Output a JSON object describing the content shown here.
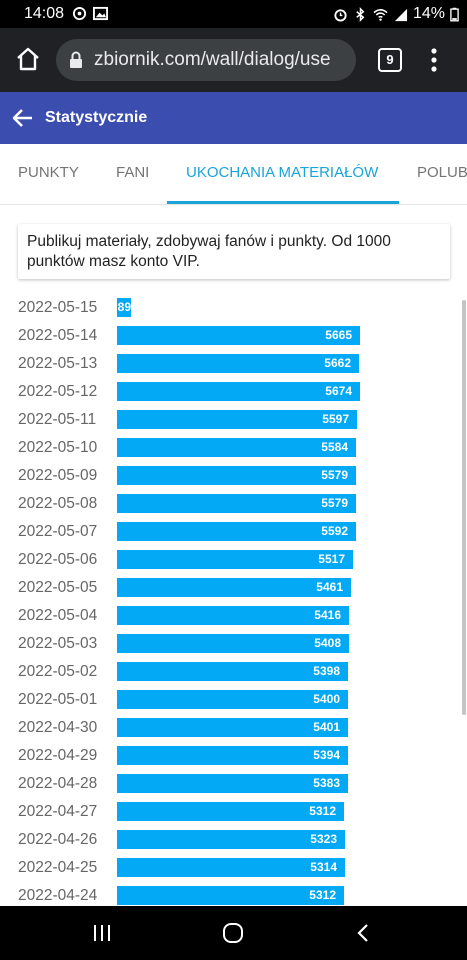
{
  "status_bar": {
    "time": "14:08",
    "battery": "14%",
    "left_icons": [
      "sync-icon",
      "gallery-icon"
    ],
    "right_icons": [
      "alarm-icon",
      "bluetooth-icon",
      "wifi-icon",
      "signal-icon",
      "battery-icon"
    ]
  },
  "browser": {
    "url": "zbiornik.com/wall/dialog/use",
    "tab_count": "9"
  },
  "header": {
    "title": "Statystycznie",
    "color": "#3c4db0"
  },
  "tabs": [
    {
      "label": "PUNKTY",
      "active": false
    },
    {
      "label": "FANI",
      "active": false
    },
    {
      "label": "UKOCHANIA MATERIAŁÓW",
      "active": true
    },
    {
      "label": "POLUB",
      "active": false
    }
  ],
  "info": {
    "text": "Publikuj materiały, zdobywaj fanów i punkty. Od 1000 punktów masz konto VIP."
  },
  "accent_color": "#03a9f4",
  "stats": {
    "max_value": 5674,
    "rows": [
      {
        "date": "2022-05-15",
        "value": 89
      },
      {
        "date": "2022-05-14",
        "value": 5665
      },
      {
        "date": "2022-05-13",
        "value": 5662
      },
      {
        "date": "2022-05-12",
        "value": 5674
      },
      {
        "date": "2022-05-11",
        "value": 5597
      },
      {
        "date": "2022-05-10",
        "value": 5584
      },
      {
        "date": "2022-05-09",
        "value": 5579
      },
      {
        "date": "2022-05-08",
        "value": 5579
      },
      {
        "date": "2022-05-07",
        "value": 5592
      },
      {
        "date": "2022-05-06",
        "value": 5517
      },
      {
        "date": "2022-05-05",
        "value": 5461
      },
      {
        "date": "2022-05-04",
        "value": 5416
      },
      {
        "date": "2022-05-03",
        "value": 5408
      },
      {
        "date": "2022-05-02",
        "value": 5398
      },
      {
        "date": "2022-05-01",
        "value": 5400
      },
      {
        "date": "2022-04-30",
        "value": 5401
      },
      {
        "date": "2022-04-29",
        "value": 5394
      },
      {
        "date": "2022-04-28",
        "value": 5383
      },
      {
        "date": "2022-04-27",
        "value": 5312
      },
      {
        "date": "2022-04-26",
        "value": 5323
      },
      {
        "date": "2022-04-25",
        "value": 5314
      },
      {
        "date": "2022-04-24",
        "value": 5312
      }
    ]
  }
}
